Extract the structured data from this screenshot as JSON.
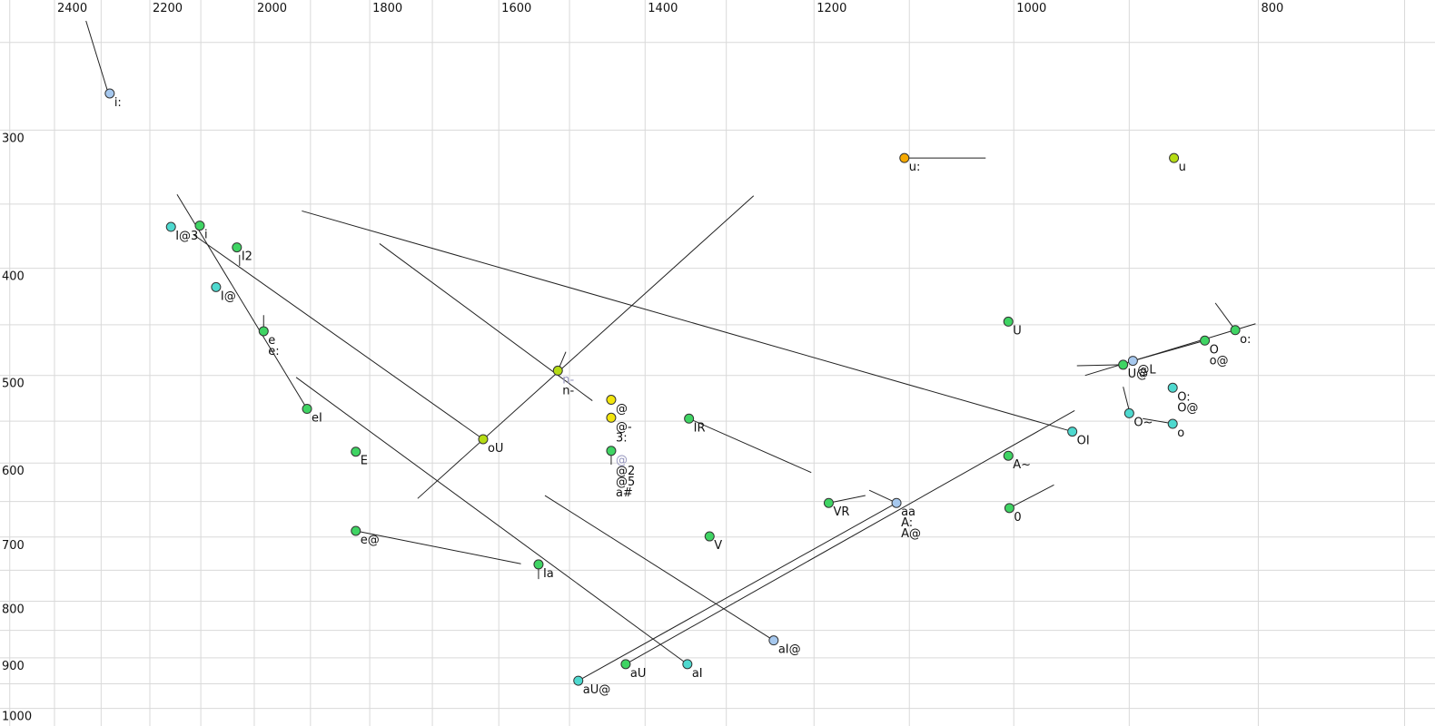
{
  "chart_data": {
    "type": "scatter",
    "title": "",
    "xlabel": "",
    "ylabel": "",
    "description": "Vowel formant plot: F2 (Hz, log scale, reversed) across top axis, F1 (Hz, log scale) down left axis. Dots are vowel tokens with phoneme labels; thin lines are diphthong trajectories.",
    "x_axis": {
      "unit": "Hz",
      "scale": "log",
      "reversed": true,
      "tick_labels": [
        2400,
        2200,
        2000,
        1800,
        1600,
        1400,
        1200,
        1000,
        800
      ],
      "gridline_start": 2500,
      "gridline_end": 700,
      "gridline_step": 100
    },
    "y_axis": {
      "unit": "Hz",
      "scale": "log",
      "tick_labels": [
        300,
        400,
        500,
        600,
        700,
        800,
        900,
        1000
      ],
      "gridline_start": 250,
      "gridline_end": 1000,
      "gridline_step": 50
    },
    "colors": {
      "lightblue": "#a6c8ee",
      "cyan": "#4ed9cf",
      "green": "#3fd463",
      "yellowgreen": "#b5dc14",
      "yellow": "#f2e50c",
      "orange": "#f5a800",
      "grid": "#d9d9d9",
      "line": "#222222",
      "dot_stroke": "#333333",
      "label": "#111111",
      "label_gray": "#9494bd",
      "tick": "#111111"
    },
    "points": [
      {
        "f2": 2282,
        "f1": 278,
        "color": "lightblue",
        "labels": [
          {
            "t": "i:"
          }
        ]
      },
      {
        "f2": 2158,
        "f1": 367,
        "color": "cyan",
        "labels": [
          {
            "t": "I@3"
          }
        ]
      },
      {
        "f2": 2102,
        "f1": 366,
        "color": "green",
        "labels": [
          {
            "t": "i"
          }
        ]
      },
      {
        "f2": 2032,
        "f1": 383,
        "color": "green",
        "labels": [
          {
            "t": "I2"
          }
        ]
      },
      {
        "f2": 2071,
        "f1": 416,
        "color": "cyan",
        "labels": [
          {
            "t": "I@"
          }
        ]
      },
      {
        "f2": 1983,
        "f1": 456,
        "color": "green",
        "labels": [
          {
            "t": "e"
          },
          {
            "t": "e:"
          }
        ]
      },
      {
        "f2": 1906,
        "f1": 536,
        "color": "green",
        "labels": [
          {
            "t": "eI"
          }
        ]
      },
      {
        "f2": 1823,
        "f1": 586,
        "color": "green",
        "labels": [
          {
            "t": "E"
          }
        ]
      },
      {
        "f2": 1823,
        "f1": 691,
        "color": "green",
        "labels": [
          {
            "t": "e@"
          }
        ]
      },
      {
        "f2": 1623,
        "f1": 571,
        "color": "yellowgreen",
        "labels": [
          {
            "t": "oU"
          }
        ]
      },
      {
        "f2": 1516,
        "f1": 495,
        "color": "yellowgreen",
        "labels": [
          {
            "t": "n-",
            "c": "gray"
          },
          {
            "t": "n-"
          }
        ]
      },
      {
        "f2": 1444,
        "f1": 526,
        "color": "yellow",
        "labels": [
          {
            "t": "@"
          }
        ]
      },
      {
        "f2": 1444,
        "f1": 546,
        "color": "yellow",
        "labels": [
          {
            "t": "@-"
          },
          {
            "t": "3:"
          }
        ]
      },
      {
        "f2": 1444,
        "f1": 585,
        "color": "green",
        "labels": [
          {
            "t": "@",
            "c": "gray"
          },
          {
            "t": "@2"
          },
          {
            "t": "@5"
          },
          {
            "t": "a#"
          }
        ]
      },
      {
        "f2": 1345,
        "f1": 547,
        "color": "green",
        "labels": [
          {
            "t": "IR"
          }
        ]
      },
      {
        "f2": 1320,
        "f1": 699,
        "color": "green",
        "labels": [
          {
            "t": "V"
          }
        ]
      },
      {
        "f2": 1543,
        "f1": 741,
        "color": "green",
        "labels": [
          {
            "t": "Ia"
          }
        ]
      },
      {
        "f2": 1488,
        "f1": 944,
        "color": "cyan",
        "labels": [
          {
            "t": "aU@"
          }
        ]
      },
      {
        "f2": 1425,
        "f1": 912,
        "color": "green",
        "labels": [
          {
            "t": "aU"
          }
        ]
      },
      {
        "f2": 1347,
        "f1": 912,
        "color": "cyan",
        "labels": [
          {
            "t": "aI"
          }
        ]
      },
      {
        "f2": 1245,
        "f1": 868,
        "color": "lightblue",
        "labels": [
          {
            "t": "aI@"
          }
        ]
      },
      {
        "f2": 1184,
        "f1": 652,
        "color": "green",
        "labels": [
          {
            "t": "VR"
          }
        ]
      },
      {
        "f2": 1113,
        "f1": 652,
        "color": "lightblue",
        "labels": [
          {
            "t": "aa"
          },
          {
            "t": "A:"
          },
          {
            "t": "A@"
          }
        ]
      },
      {
        "f2": 1004,
        "f1": 659,
        "color": "green",
        "labels": [
          {
            "t": "0"
          }
        ]
      },
      {
        "f2": 1005,
        "f1": 591,
        "color": "green",
        "labels": [
          {
            "t": "A~"
          }
        ]
      },
      {
        "f2": 1005,
        "f1": 447,
        "color": "green",
        "labels": [
          {
            "t": "U"
          }
        ]
      },
      {
        "f2": 1105,
        "f1": 318,
        "color": "orange",
        "labels": [
          {
            "t": "u:"
          }
        ]
      },
      {
        "f2": 864,
        "f1": 318,
        "color": "yellowgreen",
        "labels": [
          {
            "t": "u"
          }
        ]
      },
      {
        "f2": 905,
        "f1": 489,
        "color": "green",
        "labels": [
          {
            "t": "U@"
          }
        ]
      },
      {
        "f2": 897,
        "f1": 485,
        "color": "lightblue",
        "labels": [
          {
            "t": "@L"
          }
        ]
      },
      {
        "f2": 840,
        "f1": 465,
        "color": "green",
        "labels": [
          {
            "t": "O"
          },
          {
            "t": "o@"
          }
        ]
      },
      {
        "f2": 817,
        "f1": 455,
        "color": "green",
        "labels": [
          {
            "t": "o:"
          }
        ]
      },
      {
        "f2": 865,
        "f1": 513,
        "color": "cyan",
        "labels": [
          {
            "t": "O:"
          },
          {
            "t": "O@"
          }
        ]
      },
      {
        "f2": 900,
        "f1": 541,
        "color": "cyan",
        "labels": [
          {
            "t": "O~"
          }
        ]
      },
      {
        "f2": 865,
        "f1": 553,
        "color": "cyan",
        "labels": [
          {
            "t": "o"
          }
        ]
      },
      {
        "f2": 948,
        "f1": 562,
        "color": "cyan",
        "labels": [
          {
            "t": "OI"
          }
        ]
      }
    ],
    "segments": [
      [
        2332,
        239,
        2286,
        277
      ],
      [
        2146,
        343,
        1906,
        536
      ],
      [
        2114,
        373,
        1623,
        571
      ],
      [
        1915,
        355,
        948,
        562
      ],
      [
        1784,
        380,
        1469,
        527
      ],
      [
        1925,
        502,
        1347,
        912
      ],
      [
        1823,
        691,
        1568,
        740
      ],
      [
        1723,
        646,
        1268,
        344
      ],
      [
        1505,
        476,
        1516,
        495
      ],
      [
        1425,
        912,
        946,
        538
      ],
      [
        1488,
        944,
        1113,
        652
      ],
      [
        1534,
        642,
        1245,
        868
      ],
      [
        1184,
        652,
        1145,
        642
      ],
      [
        1141,
        635,
        1113,
        652
      ],
      [
        1004,
        659,
        964,
        628
      ],
      [
        1105,
        318,
        1026,
        318
      ],
      [
        944,
        490,
        905,
        489
      ],
      [
        937,
        500,
        802,
        449
      ],
      [
        897,
        485,
        840,
        465
      ],
      [
        832,
        430,
        817,
        455
      ],
      [
        905,
        512,
        900,
        538
      ],
      [
        889,
        547,
        868,
        552
      ],
      [
        2027,
        389,
        2027,
        398
      ],
      [
        1983,
        441,
        1983,
        453
      ],
      [
        1543,
        744,
        1543,
        764
      ],
      [
        1444,
        587,
        1444,
        602
      ],
      [
        1345,
        547,
        1203,
        612
      ]
    ]
  }
}
